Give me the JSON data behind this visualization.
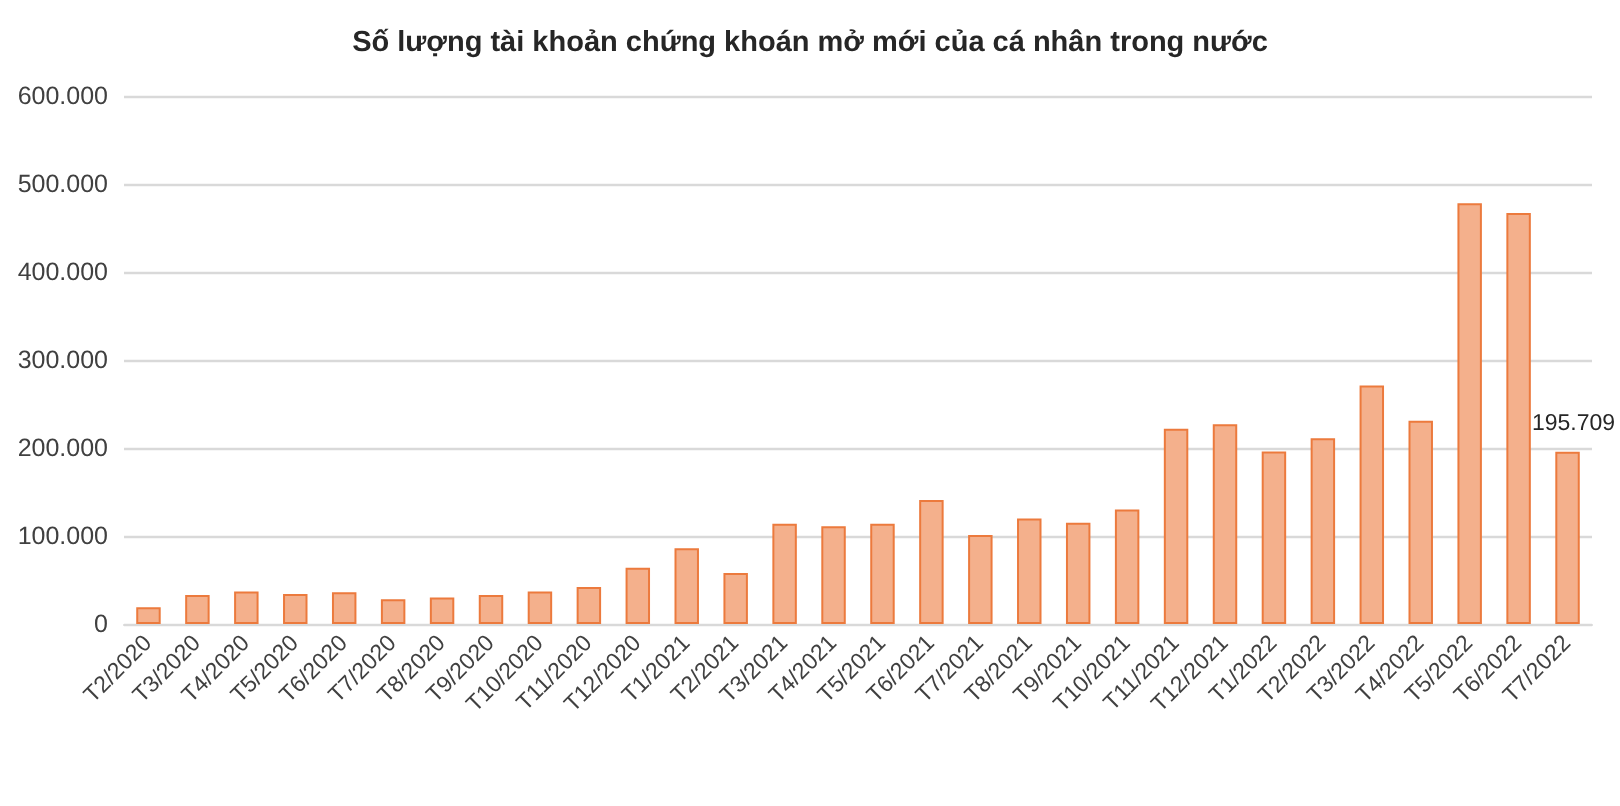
{
  "chart_data": {
    "type": "bar",
    "title": "Số lượng tài khoản chứng khoán mở mới của cá nhân trong nước",
    "categories": [
      "T2/2020",
      "T3/2020",
      "T4/2020",
      "T5/2020",
      "T6/2020",
      "T7/2020",
      "T8/2020",
      "T9/2020",
      "T10/2020",
      "T11/2020",
      "T12/2020",
      "T1/2021",
      "T2/2021",
      "T3/2021",
      "T4/2021",
      "T5/2021",
      "T6/2021",
      "T7/2021",
      "T8/2021",
      "T9/2021",
      "T10/2021",
      "T11/2021",
      "T12/2021",
      "T1/2022",
      "T2/2022",
      "T3/2022",
      "T4/2022",
      "T5/2022",
      "T6/2022",
      "T7/2022"
    ],
    "values": [
      19000,
      33000,
      37000,
      34000,
      36000,
      28000,
      30000,
      33000,
      37000,
      42000,
      64000,
      86000,
      58000,
      114000,
      111000,
      114000,
      141000,
      101000,
      120000,
      115000,
      130000,
      222000,
      227000,
      196000,
      211000,
      271000,
      231000,
      478000,
      467000,
      195709
    ],
    "value_labels": [
      null,
      null,
      null,
      null,
      null,
      null,
      null,
      null,
      null,
      null,
      null,
      null,
      null,
      null,
      null,
      null,
      null,
      null,
      null,
      null,
      null,
      null,
      null,
      null,
      null,
      null,
      null,
      null,
      null,
      "195.709"
    ],
    "color": "#f4b08c",
    "ylim": [
      0,
      600000
    ],
    "yticks": [
      0,
      {
        "value": 100000,
        "label": "100.000"
      },
      {
        "value": 200000,
        "label": "200.000"
      },
      {
        "value": 300000,
        "label": "300.000"
      },
      {
        "value": 400000,
        "label": "400.000"
      },
      {
        "value": 500000,
        "label": "500.000"
      },
      {
        "value": 600000,
        "label": "600.000"
      }
    ],
    "grid": "y"
  }
}
